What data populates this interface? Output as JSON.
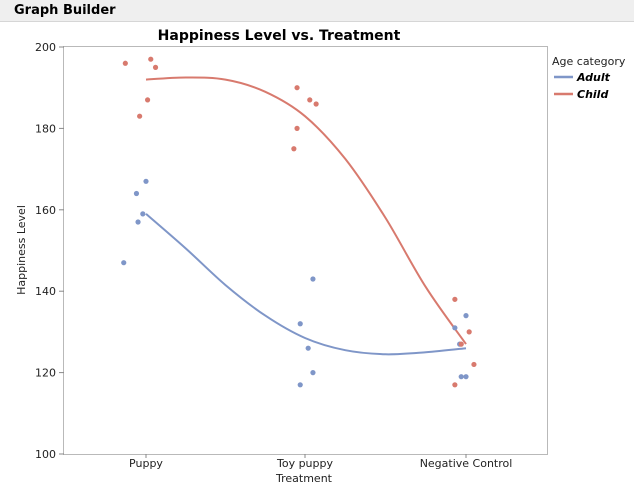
{
  "window": {
    "title": "Graph Builder"
  },
  "chart_data": {
    "type": "scatter",
    "title": "Happiness Level vs. Treatment",
    "xlabel": "Treatment",
    "ylabel": "Happiness Level",
    "categories": [
      "Puppy",
      "Toy puppy",
      "Negative Control"
    ],
    "ylim": [
      100,
      200
    ],
    "yticks": [
      100,
      120,
      140,
      160,
      180,
      200
    ],
    "legend_title": "Age category",
    "legend_position": "right",
    "series": [
      {
        "name": "Adult",
        "color": "#7f96c8",
        "points": [
          {
            "cat": 0,
            "jitter": -0.14,
            "y": 147
          },
          {
            "cat": 0,
            "jitter": -0.06,
            "y": 164
          },
          {
            "cat": 0,
            "jitter": -0.05,
            "y": 157
          },
          {
            "cat": 0,
            "jitter": -0.02,
            "y": 159
          },
          {
            "cat": 0,
            "jitter": 0.0,
            "y": 167
          },
          {
            "cat": 1,
            "jitter": -0.03,
            "y": 117
          },
          {
            "cat": 1,
            "jitter": -0.03,
            "y": 132
          },
          {
            "cat": 1,
            "jitter": 0.02,
            "y": 126
          },
          {
            "cat": 1,
            "jitter": 0.05,
            "y": 120
          },
          {
            "cat": 1,
            "jitter": 0.05,
            "y": 143
          },
          {
            "cat": 2,
            "jitter": -0.07,
            "y": 131
          },
          {
            "cat": 2,
            "jitter": -0.04,
            "y": 127
          },
          {
            "cat": 2,
            "jitter": -0.03,
            "y": 119
          },
          {
            "cat": 2,
            "jitter": 0.0,
            "y": 119
          },
          {
            "cat": 2,
            "jitter": 0.0,
            "y": 134
          }
        ],
        "fit": [
          {
            "x": 0.0,
            "y": 159
          },
          {
            "x": 0.25,
            "y": 150.5
          },
          {
            "x": 0.5,
            "y": 141.5
          },
          {
            "x": 0.75,
            "y": 134
          },
          {
            "x": 1.0,
            "y": 128.5
          },
          {
            "x": 1.25,
            "y": 125.5
          },
          {
            "x": 1.5,
            "y": 124.5
          },
          {
            "x": 1.75,
            "y": 125
          },
          {
            "x": 2.0,
            "y": 126
          }
        ]
      },
      {
        "name": "Child",
        "color": "#d87a6e",
        "points": [
          {
            "cat": 0,
            "jitter": -0.13,
            "y": 196
          },
          {
            "cat": 0,
            "jitter": -0.04,
            "y": 183
          },
          {
            "cat": 0,
            "jitter": 0.01,
            "y": 187
          },
          {
            "cat": 0,
            "jitter": 0.03,
            "y": 197
          },
          {
            "cat": 0,
            "jitter": 0.06,
            "y": 195
          },
          {
            "cat": 1,
            "jitter": -0.07,
            "y": 175
          },
          {
            "cat": 1,
            "jitter": -0.05,
            "y": 180
          },
          {
            "cat": 1,
            "jitter": -0.05,
            "y": 190
          },
          {
            "cat": 1,
            "jitter": 0.03,
            "y": 187
          },
          {
            "cat": 1,
            "jitter": 0.07,
            "y": 186
          },
          {
            "cat": 2,
            "jitter": -0.07,
            "y": 117
          },
          {
            "cat": 2,
            "jitter": -0.07,
            "y": 138
          },
          {
            "cat": 2,
            "jitter": -0.03,
            "y": 127
          },
          {
            "cat": 2,
            "jitter": 0.02,
            "y": 130
          },
          {
            "cat": 2,
            "jitter": 0.05,
            "y": 122
          }
        ],
        "fit": [
          {
            "x": 0.0,
            "y": 192
          },
          {
            "x": 0.25,
            "y": 192.5
          },
          {
            "x": 0.5,
            "y": 192
          },
          {
            "x": 0.75,
            "y": 189
          },
          {
            "x": 1.0,
            "y": 183
          },
          {
            "x": 1.25,
            "y": 172.5
          },
          {
            "x": 1.5,
            "y": 158
          },
          {
            "x": 1.75,
            "y": 141
          },
          {
            "x": 2.0,
            "y": 127
          }
        ]
      }
    ]
  }
}
